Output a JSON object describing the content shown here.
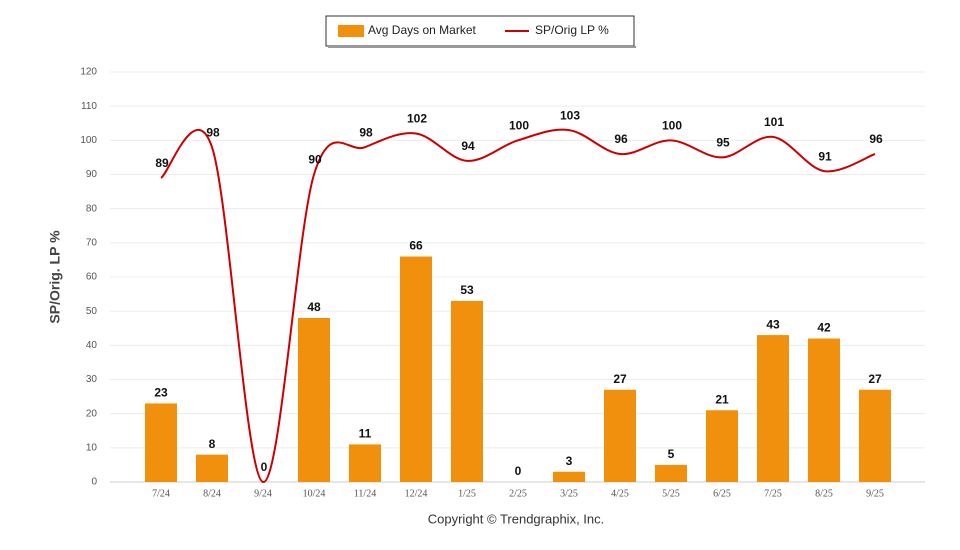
{
  "chart_data": {
    "type": "bar-line",
    "categories": [
      "7/24",
      "8/24",
      "9/24",
      "10/24",
      "11/24",
      "12/24",
      "1/25",
      "2/25",
      "3/25",
      "4/25",
      "5/25",
      "6/25",
      "7/25",
      "8/25",
      "9/25"
    ],
    "series": [
      {
        "name": "Avg Days on Market",
        "type": "bar",
        "color": "#f0900c",
        "values": [
          23,
          8,
          null,
          48,
          11,
          66,
          53,
          0,
          3,
          27,
          5,
          21,
          43,
          42,
          27
        ]
      },
      {
        "name": "SP/Orig LP %",
        "type": "line",
        "color": "#cc0000",
        "values": [
          89,
          98,
          0,
          90,
          98,
          102,
          94,
          100,
          103,
          96,
          100,
          95,
          101,
          91,
          96
        ]
      }
    ],
    "y_label": "SP/Orig. LP %",
    "ylim": [
      0,
      120
    ],
    "yticks": [
      0,
      10,
      20,
      30,
      40,
      50,
      60,
      70,
      80,
      90,
      100,
      110,
      120
    ],
    "grid": true,
    "legend": "top",
    "footer": "Copyright © Trendgraphix, Inc."
  }
}
